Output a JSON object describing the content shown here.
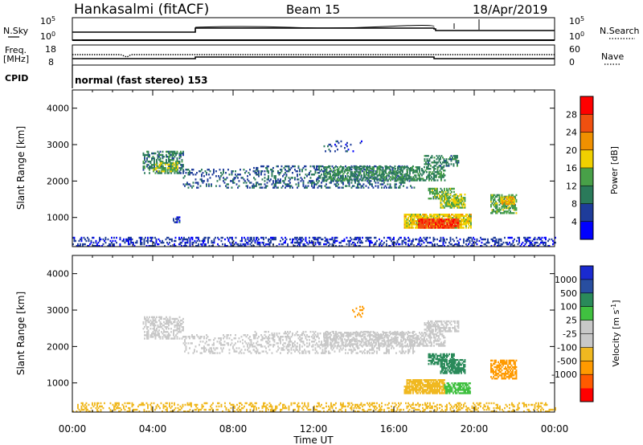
{
  "header": {
    "station": "Hankasalmi (fitACF)",
    "beam": "Beam 15",
    "date": "18/Apr/2019"
  },
  "noise_panel": {
    "left_label": "N.Sky",
    "right_label": "N.Search",
    "left_ticks": [
      "10^5",
      "10^0"
    ],
    "right_ticks": [
      "10^5",
      "10^0"
    ]
  },
  "freq_panel": {
    "left_label": "Freq.",
    "left_unit": "[MHz]",
    "right_label": "Nave",
    "left_ticks": [
      "18",
      "8"
    ],
    "right_ticks": [
      "60",
      "0"
    ]
  },
  "cpid_panel": {
    "label": "CPID",
    "mode_text": "normal (fast stereo) 153"
  },
  "colors": {
    "power_scale": [
      "#0000ff",
      "#1e3c9a",
      "#2a7a5a",
      "#48a048",
      "#f0d000",
      "#f09000",
      "#f05010",
      "#ff0000"
    ],
    "velocity_scale": [
      "#ff0000",
      "#ff5a00",
      "#ff9a00",
      "#f0b820",
      "#c8c8c8",
      "#c8c8c8",
      "#40c040",
      "#2a8a5a",
      "#284ea0",
      "#1a2ad0"
    ]
  },
  "chart_data": [
    {
      "type": "heatmap",
      "name": "power",
      "xlabel": "Time UT",
      "ylabel": "Slant Range [km]",
      "x_ticks": [
        "00:00",
        "04:00",
        "08:00",
        "12:00",
        "16:00",
        "20:00",
        "00:00"
      ],
      "y_ticks": [
        1000,
        2000,
        3000,
        4000
      ],
      "xlim": [
        0,
        24
      ],
      "ylim": [
        200,
        4500
      ],
      "colorbar": {
        "label": "Power [dB]",
        "tick_labels": [
          "4",
          "8",
          "12",
          "16",
          "20",
          "24",
          "28"
        ],
        "range": [
          0,
          32
        ]
      },
      "regions": [
        {
          "t0": 0.0,
          "t1": 24.0,
          "r0": 200,
          "r1": 450,
          "v": 5,
          "d": 0.35
        },
        {
          "t0": 3.5,
          "t1": 5.5,
          "r0": 2200,
          "r1": 2800,
          "v": 10,
          "d": 0.45
        },
        {
          "t0": 4.0,
          "t1": 5.2,
          "r0": 2250,
          "r1": 2500,
          "v": 16,
          "d": 0.55
        },
        {
          "t0": 5.5,
          "t1": 9.0,
          "r0": 1800,
          "r1": 2300,
          "v": 7,
          "d": 0.2
        },
        {
          "t0": 9.0,
          "t1": 17.0,
          "r0": 1800,
          "r1": 2400,
          "v": 8,
          "d": 0.3
        },
        {
          "t0": 12.5,
          "t1": 18.5,
          "r0": 2000,
          "r1": 2400,
          "v": 11,
          "d": 0.5
        },
        {
          "t0": 17.5,
          "t1": 19.2,
          "r0": 2400,
          "r1": 2700,
          "v": 10,
          "d": 0.5
        },
        {
          "t0": 17.7,
          "t1": 19.0,
          "r0": 1500,
          "r1": 1800,
          "v": 14,
          "d": 0.6
        },
        {
          "t0": 18.3,
          "t1": 19.5,
          "r0": 1250,
          "r1": 1650,
          "v": 16,
          "d": 0.7
        },
        {
          "t0": 16.5,
          "t1": 19.8,
          "r0": 700,
          "r1": 1100,
          "v": 18,
          "d": 0.8
        },
        {
          "t0": 17.2,
          "t1": 19.2,
          "r0": 700,
          "r1": 950,
          "v": 27,
          "d": 0.85
        },
        {
          "t0": 20.8,
          "t1": 22.1,
          "r0": 1100,
          "r1": 1600,
          "v": 14,
          "d": 0.6
        },
        {
          "t0": 21.3,
          "t1": 22.0,
          "r0": 1350,
          "r1": 1550,
          "v": 20,
          "d": 0.7
        },
        {
          "t0": 5.0,
          "t1": 5.3,
          "r0": 850,
          "r1": 1000,
          "v": 6,
          "d": 0.5
        },
        {
          "t0": 12.5,
          "t1": 14.5,
          "r0": 2800,
          "r1": 3100,
          "v": 6,
          "d": 0.12
        }
      ]
    },
    {
      "type": "heatmap",
      "name": "velocity",
      "xlabel": "Time UT",
      "ylabel": "Slant Range [km]",
      "x_ticks": [
        "00:00",
        "04:00",
        "08:00",
        "12:00",
        "16:00",
        "20:00",
        "00:00"
      ],
      "y_ticks": [
        1000,
        2000,
        3000,
        4000
      ],
      "xlim": [
        0,
        24
      ],
      "ylim": [
        200,
        4500
      ],
      "colorbar": {
        "label": "Velocity [m s^-1]",
        "tick_labels": [
          "1000",
          "500",
          "100",
          "25",
          "-25",
          "-100",
          "-500",
          "-1000"
        ]
      },
      "regions": [
        {
          "t0": 0.0,
          "t1": 24.0,
          "r0": 200,
          "r1": 450,
          "v": -60,
          "d": 0.3
        },
        {
          "t0": 3.5,
          "t1": 5.5,
          "r0": 2200,
          "r1": 2800,
          "v": 0,
          "d": 0.45
        },
        {
          "t0": 5.5,
          "t1": 9.0,
          "r0": 1800,
          "r1": 2300,
          "v": 0,
          "d": 0.2
        },
        {
          "t0": 9.0,
          "t1": 17.0,
          "r0": 1800,
          "r1": 2400,
          "v": 0,
          "d": 0.3
        },
        {
          "t0": 12.5,
          "t1": 18.5,
          "r0": 2000,
          "r1": 2400,
          "v": 0,
          "d": 0.5
        },
        {
          "t0": 17.5,
          "t1": 19.2,
          "r0": 2400,
          "r1": 2700,
          "v": 0,
          "d": 0.5
        },
        {
          "t0": 17.7,
          "t1": 19.0,
          "r0": 1500,
          "r1": 1800,
          "v": 150,
          "d": 0.6
        },
        {
          "t0": 18.3,
          "t1": 19.5,
          "r0": 1250,
          "r1": 1650,
          "v": 300,
          "d": 0.7
        },
        {
          "t0": 16.5,
          "t1": 18.5,
          "r0": 700,
          "r1": 1100,
          "v": -80,
          "d": 0.8
        },
        {
          "t0": 18.5,
          "t1": 19.8,
          "r0": 700,
          "r1": 1000,
          "v": 50,
          "d": 0.7
        },
        {
          "t0": 20.8,
          "t1": 22.1,
          "r0": 1100,
          "r1": 1600,
          "v": -150,
          "d": 0.6
        },
        {
          "t0": 13.5,
          "t1": 14.5,
          "r0": 2800,
          "r1": 3100,
          "v": -300,
          "d": 0.15
        }
      ]
    }
  ]
}
